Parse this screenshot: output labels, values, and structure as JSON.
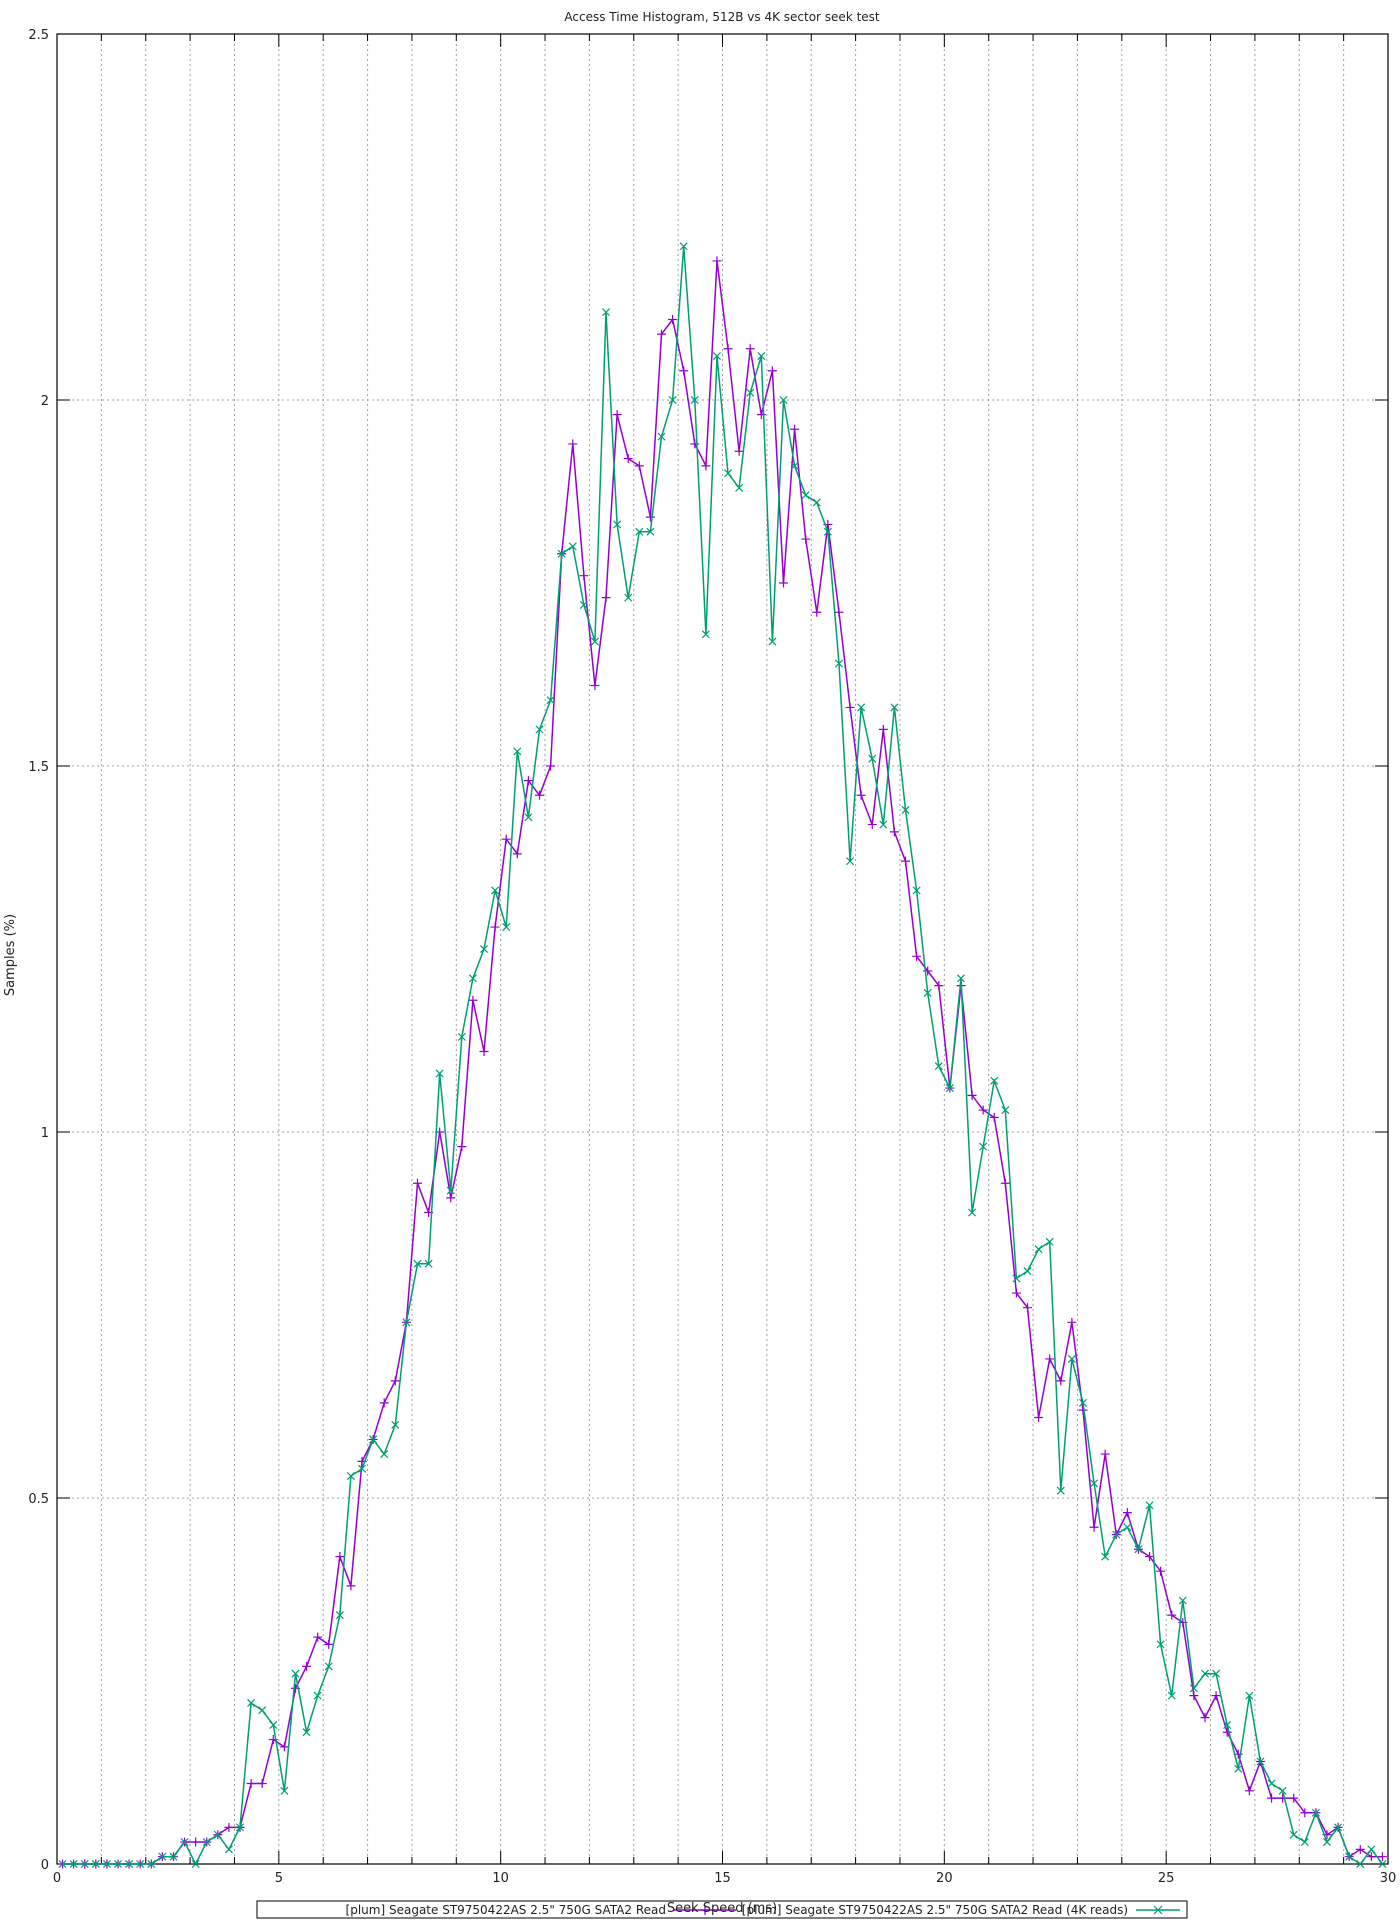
{
  "chart_data": {
    "type": "line",
    "title": "Access Time Histogram, 512B vs 4K sector seek test",
    "xlabel": "Seek Speed (ms)",
    "ylabel": "Samples (%)",
    "xlim": [
      0,
      30
    ],
    "ylim": [
      0,
      2.5
    ],
    "x_ticks": [
      "0",
      "5",
      "10",
      "15",
      "20",
      "25",
      "30"
    ],
    "y_ticks": [
      "0",
      "0.5",
      "1",
      "1.5",
      "2",
      "2.5"
    ],
    "grid": true,
    "legend_position": "bottom",
    "x": [
      0.125,
      0.375,
      0.625,
      0.875,
      1.125,
      1.375,
      1.625,
      1.875,
      2.125,
      2.375,
      2.625,
      2.875,
      3.125,
      3.375,
      3.625,
      3.875,
      4.125,
      4.375,
      4.625,
      4.875,
      5.125,
      5.375,
      5.625,
      5.875,
      6.125,
      6.375,
      6.625,
      6.875,
      7.125,
      7.375,
      7.625,
      7.875,
      8.125,
      8.375,
      8.625,
      8.875,
      9.125,
      9.375,
      9.625,
      9.875,
      10.125,
      10.375,
      10.625,
      10.875,
      11.125,
      11.375,
      11.625,
      11.875,
      12.125,
      12.375,
      12.625,
      12.875,
      13.125,
      13.375,
      13.625,
      13.875,
      14.125,
      14.375,
      14.625,
      14.875,
      15.125,
      15.375,
      15.625,
      15.875,
      16.125,
      16.375,
      16.625,
      16.875,
      17.125,
      17.375,
      17.625,
      17.875,
      18.125,
      18.375,
      18.625,
      18.875,
      19.125,
      19.375,
      19.625,
      19.875,
      20.125,
      20.375,
      20.625,
      20.875,
      21.125,
      21.375,
      21.625,
      21.875,
      22.125,
      22.375,
      22.625,
      22.875,
      23.125,
      23.375,
      23.625,
      23.875,
      24.125,
      24.375,
      24.625,
      24.875,
      25.125,
      25.375,
      25.625,
      25.875,
      26.125,
      26.375,
      26.625,
      26.875,
      27.125,
      27.375,
      27.625,
      27.875,
      28.125,
      28.375,
      28.625,
      28.875,
      29.125,
      29.375,
      29.625,
      29.875
    ],
    "series": [
      {
        "name": "[plum] Seagate ST9750422AS 2.5\" 750G SATA2 Read",
        "color": "#9400d3",
        "marker": "plus",
        "values": [
          0,
          0,
          0,
          0,
          0,
          0,
          0,
          0,
          0,
          0.01,
          0.01,
          0.03,
          0.03,
          0.03,
          0.04,
          0.05,
          0.05,
          0.11,
          0.11,
          0.17,
          0.16,
          0.24,
          0.27,
          0.31,
          0.3,
          0.42,
          0.38,
          0.55,
          0.58,
          0.63,
          0.66,
          0.74,
          0.93,
          0.89,
          1.0,
          0.91,
          0.98,
          1.18,
          1.11,
          1.28,
          1.4,
          1.38,
          1.48,
          1.46,
          1.5,
          1.79,
          1.94,
          1.76,
          1.61,
          1.73,
          1.98,
          1.92,
          1.91,
          1.84,
          2.09,
          2.11,
          2.04,
          1.94,
          1.91,
          2.19,
          2.07,
          1.93,
          2.07,
          1.98,
          2.04,
          1.75,
          1.96,
          1.81,
          1.71,
          1.83,
          1.71,
          1.58,
          1.46,
          1.42,
          1.55,
          1.41,
          1.37,
          1.24,
          1.22,
          1.2,
          1.06,
          1.2,
          1.05,
          1.03,
          1.02,
          0.93,
          0.78,
          0.76,
          0.61,
          0.69,
          0.66,
          0.74,
          0.62,
          0.46,
          0.56,
          0.45,
          0.48,
          0.43,
          0.42,
          0.4,
          0.34,
          0.33,
          0.23,
          0.2,
          0.23,
          0.18,
          0.15,
          0.1,
          0.14,
          0.09,
          0.09,
          0.09,
          0.07,
          0.07,
          0.04,
          0.05,
          0.01,
          0.02,
          0.01,
          0.01
        ]
      },
      {
        "name": "[plum] Seagate ST9750422AS 2.5\" 750G SATA2 Read (4K reads)",
        "color": "#009e73",
        "marker": "cross",
        "values": [
          0,
          0,
          0,
          0,
          0,
          0,
          0,
          0,
          0,
          0.01,
          0.01,
          0.03,
          0,
          0.03,
          0.04,
          0.02,
          0.05,
          0.22,
          0.21,
          0.19,
          0.1,
          0.26,
          0.18,
          0.23,
          0.27,
          0.34,
          0.53,
          0.54,
          0.58,
          0.56,
          0.6,
          0.74,
          0.82,
          0.82,
          1.08,
          0.92,
          1.13,
          1.21,
          1.25,
          1.33,
          1.28,
          1.52,
          1.43,
          1.55,
          1.59,
          1.79,
          1.8,
          1.72,
          1.67,
          2.12,
          1.83,
          1.73,
          1.82,
          1.82,
          1.95,
          2.0,
          2.21,
          2.0,
          1.68,
          2.06,
          1.9,
          1.88,
          2.01,
          2.06,
          1.67,
          2.0,
          1.91,
          1.87,
          1.86,
          1.82,
          1.64,
          1.37,
          1.58,
          1.51,
          1.42,
          1.58,
          1.44,
          1.33,
          1.19,
          1.09,
          1.06,
          1.21,
          0.89,
          0.98,
          1.07,
          1.03,
          0.8,
          0.81,
          0.84,
          0.85,
          0.51,
          0.69,
          0.63,
          0.52,
          0.42,
          0.45,
          0.46,
          0.43,
          0.49,
          0.3,
          0.23,
          0.36,
          0.24,
          0.26,
          0.26,
          0.19,
          0.13,
          0.23,
          0.14,
          0.11,
          0.1,
          0.04,
          0.03,
          0.07,
          0.03,
          0.05,
          0.01,
          0,
          0.02,
          0
        ]
      }
    ]
  }
}
